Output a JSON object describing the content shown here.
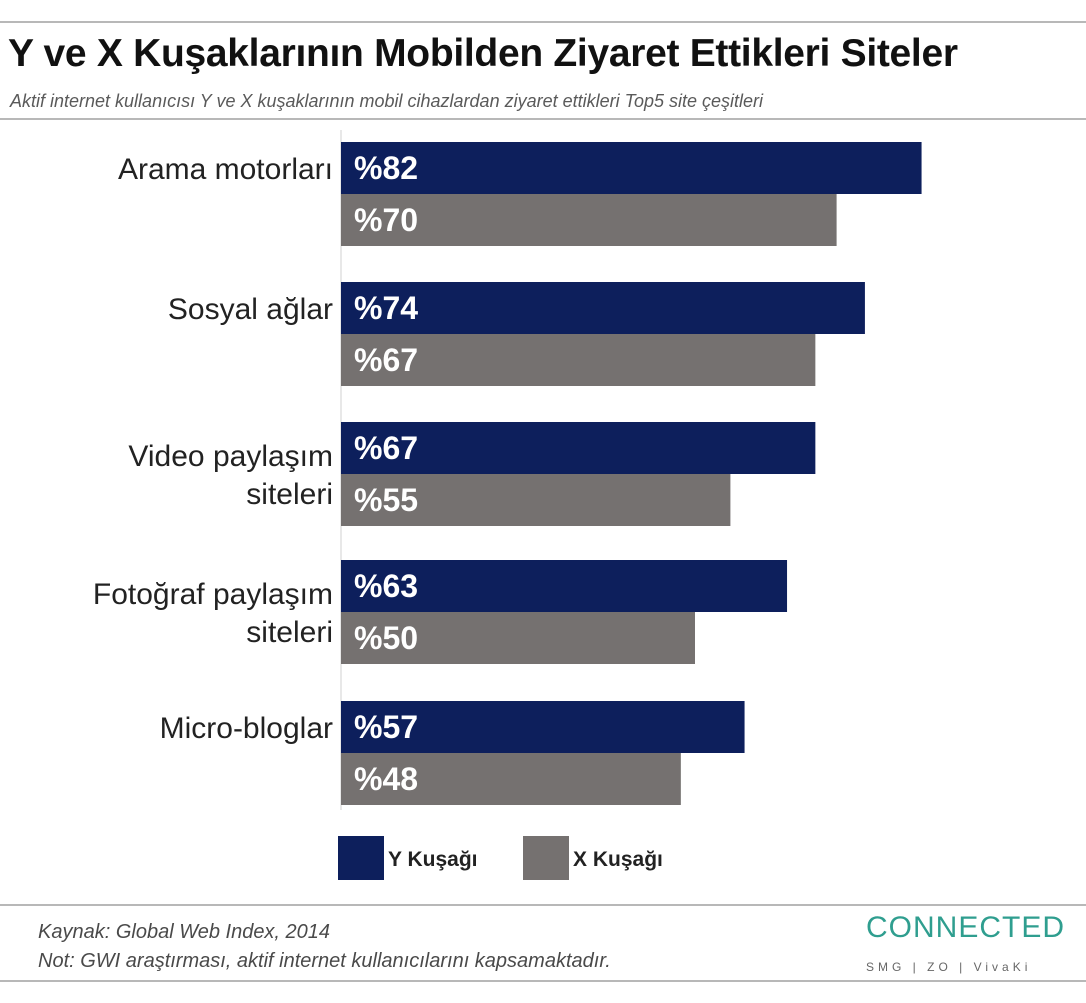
{
  "header": {
    "title": "Y ve X Kuşaklarının Mobilden Ziyaret Ettikleri Siteler",
    "subtitle": "Aktif internet kullanıcısı Y ve X kuşaklarının mobil cihazlardan ziyaret ettikleri Top5 site çeşitleri"
  },
  "chart_data": {
    "type": "bar",
    "orientation": "horizontal",
    "categories": [
      "Arama motorları",
      "Sosyal ağlar",
      "Video paylaşım siteleri",
      "Fotoğraf paylaşım siteleri",
      "Micro-bloglar"
    ],
    "category_lines": [
      [
        "Arama motorları"
      ],
      [
        "Sosyal ağlar"
      ],
      [
        "Video paylaşım",
        "siteleri"
      ],
      [
        "Fotoğraf paylaşım",
        "siteleri"
      ],
      [
        "Micro-bloglar"
      ]
    ],
    "series": [
      {
        "name": "Y Kuşağı",
        "values": [
          82,
          74,
          67,
          63,
          57
        ],
        "labels": [
          "%82",
          "%74",
          "%67",
          "%63",
          "%57"
        ],
        "color": "#0d1f5c"
      },
      {
        "name": "X Kuşağı",
        "values": [
          70,
          67,
          55,
          50,
          48
        ],
        "labels": [
          "%70",
          "%67",
          "%55",
          "%50",
          "%48"
        ],
        "color": "#757170"
      }
    ],
    "legend": "bottom",
    "grid": false
  },
  "footer": {
    "source": "Kaynak: Global Web Index, 2014",
    "note": "Not: GWI araştırması, aktif internet kullanıcılarını kapsamaktadır."
  },
  "logo": {
    "name": "CONNECTED",
    "sub": "SMG | ZO | VivaKi"
  }
}
